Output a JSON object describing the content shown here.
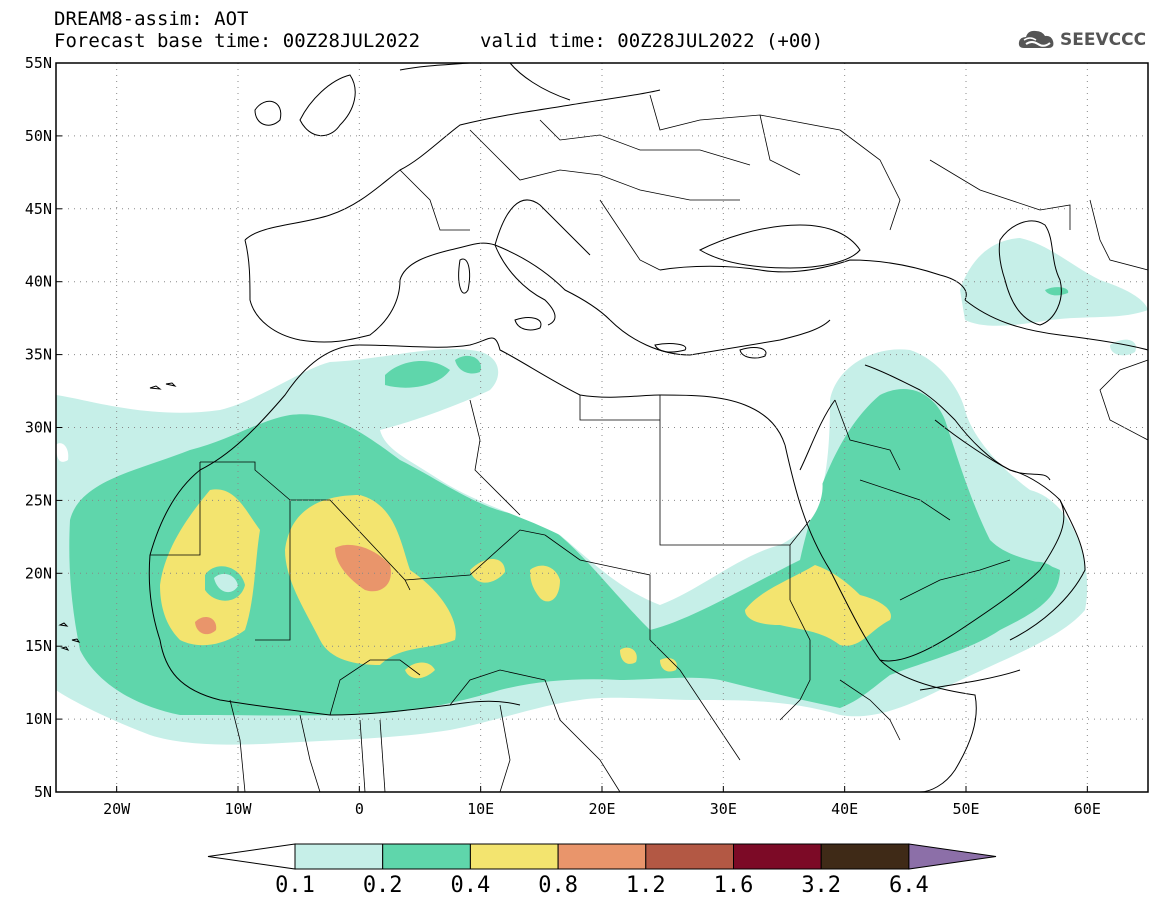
{
  "header": {
    "title": "DREAM8-assim: AOT",
    "base_time": "Forecast base time: 00Z28JUL2022",
    "valid_time": "valid time: 00Z28JUL2022 (+00)",
    "logo": "SEEVCCC"
  },
  "map": {
    "projection": "equirectangular",
    "extent": {
      "lon_min": -25,
      "lon_max": 65,
      "lat_min": 5,
      "lat_max": 55
    },
    "lat_labels": [
      "5N",
      "10N",
      "15N",
      "20N",
      "25N",
      "30N",
      "35N",
      "40N",
      "45N",
      "50N",
      "55N"
    ],
    "lat_values": [
      5,
      10,
      15,
      20,
      25,
      30,
      35,
      40,
      45,
      50,
      55
    ],
    "lon_labels": [
      "20W",
      "10W",
      "0",
      "10E",
      "20E",
      "30E",
      "40E",
      "50E",
      "60E"
    ],
    "lon_values": [
      -20,
      -10,
      0,
      10,
      20,
      30,
      40,
      50,
      60
    ],
    "grid": "dotted"
  },
  "colorbar": {
    "labels": [
      "0.1",
      "0.2",
      "0.4",
      "0.8",
      "1.2",
      "1.6",
      "3.2",
      "6.4"
    ],
    "colors": [
      "#c6efe8",
      "#5fd6ab",
      "#f3e46f",
      "#e9956b",
      "#b35844",
      "#7c0a26",
      "#3f2a17"
    ],
    "over_color": "#8c6fa8",
    "under_color": "#ffffff"
  },
  "colors": {
    "level_01": "#c6efe8",
    "level_02": "#5fd6ab",
    "level_04": "#f3e46f",
    "level_08": "#e9956b"
  }
}
